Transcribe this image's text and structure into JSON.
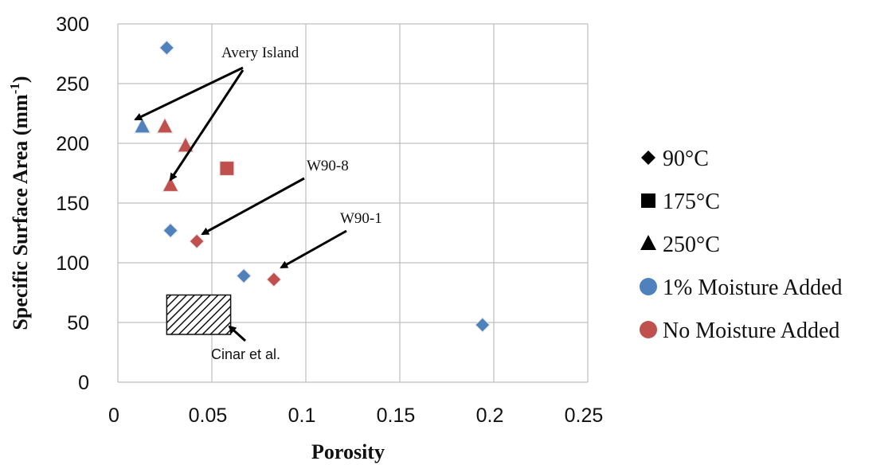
{
  "chart_data": {
    "type": "scatter",
    "xlabel": "Porosity",
    "ylabel": "Specific Surface Area (mm",
    "ylabel_sup": "-1",
    "ylabel_close": ")",
    "xlim": [
      0,
      0.25
    ],
    "ylim": [
      0,
      300
    ],
    "x_ticks": [
      0,
      0.05,
      0.1,
      0.15,
      0.2,
      0.25
    ],
    "x_tick_labels": [
      "0",
      "0.05",
      "0.1",
      "0.15",
      "0.2",
      "0.25"
    ],
    "y_ticks": [
      0,
      50,
      100,
      150,
      200,
      250,
      300
    ],
    "y_tick_labels": [
      "0",
      "50",
      "100",
      "150",
      "200",
      "250",
      "300"
    ],
    "grid": true,
    "legend_position": "right",
    "legend": [
      {
        "label": "90°C",
        "marker": "diamond",
        "color": "#000000"
      },
      {
        "label": "175°C",
        "marker": "square",
        "color": "#000000"
      },
      {
        "label": "250°C",
        "marker": "triangle",
        "color": "#000000"
      },
      {
        "label": "1% Moisture Added",
        "marker": "circle",
        "color": "#4f81bd"
      },
      {
        "label": "No Moisture Added",
        "marker": "circle",
        "color": "#c0504d"
      }
    ],
    "points": [
      {
        "x": 0.026,
        "y": 280,
        "marker": "diamond",
        "group": "1% Moisture Added"
      },
      {
        "x": 0.028,
        "y": 127,
        "marker": "diamond",
        "group": "1% Moisture Added"
      },
      {
        "x": 0.067,
        "y": 89,
        "marker": "diamond",
        "group": "1% Moisture Added"
      },
      {
        "x": 0.194,
        "y": 48,
        "marker": "diamond",
        "group": "1% Moisture Added"
      },
      {
        "x": 0.013,
        "y": 214,
        "marker": "triangle",
        "group": "1% Moisture Added"
      },
      {
        "x": 0.042,
        "y": 118,
        "marker": "diamond",
        "group": "No Moisture Added"
      },
      {
        "x": 0.083,
        "y": 86,
        "marker": "diamond",
        "group": "No Moisture Added"
      },
      {
        "x": 0.058,
        "y": 179,
        "marker": "square",
        "group": "No Moisture Added"
      },
      {
        "x": 0.025,
        "y": 214,
        "marker": "triangle",
        "group": "No Moisture Added"
      },
      {
        "x": 0.036,
        "y": 198,
        "marker": "triangle",
        "group": "No Moisture Added"
      },
      {
        "x": 0.028,
        "y": 165,
        "marker": "triangle",
        "group": "No Moisture Added"
      }
    ],
    "region": {
      "label": "Cinar et al.",
      "x": [
        0.026,
        0.06
      ],
      "y": [
        40,
        73
      ]
    },
    "annotations": [
      {
        "text": "Avery Island"
      },
      {
        "text": "W90-8"
      },
      {
        "text": "W90-1"
      }
    ],
    "colors": {
      "moisture_1pct": "#4f81bd",
      "no_moisture": "#c0504d"
    }
  }
}
